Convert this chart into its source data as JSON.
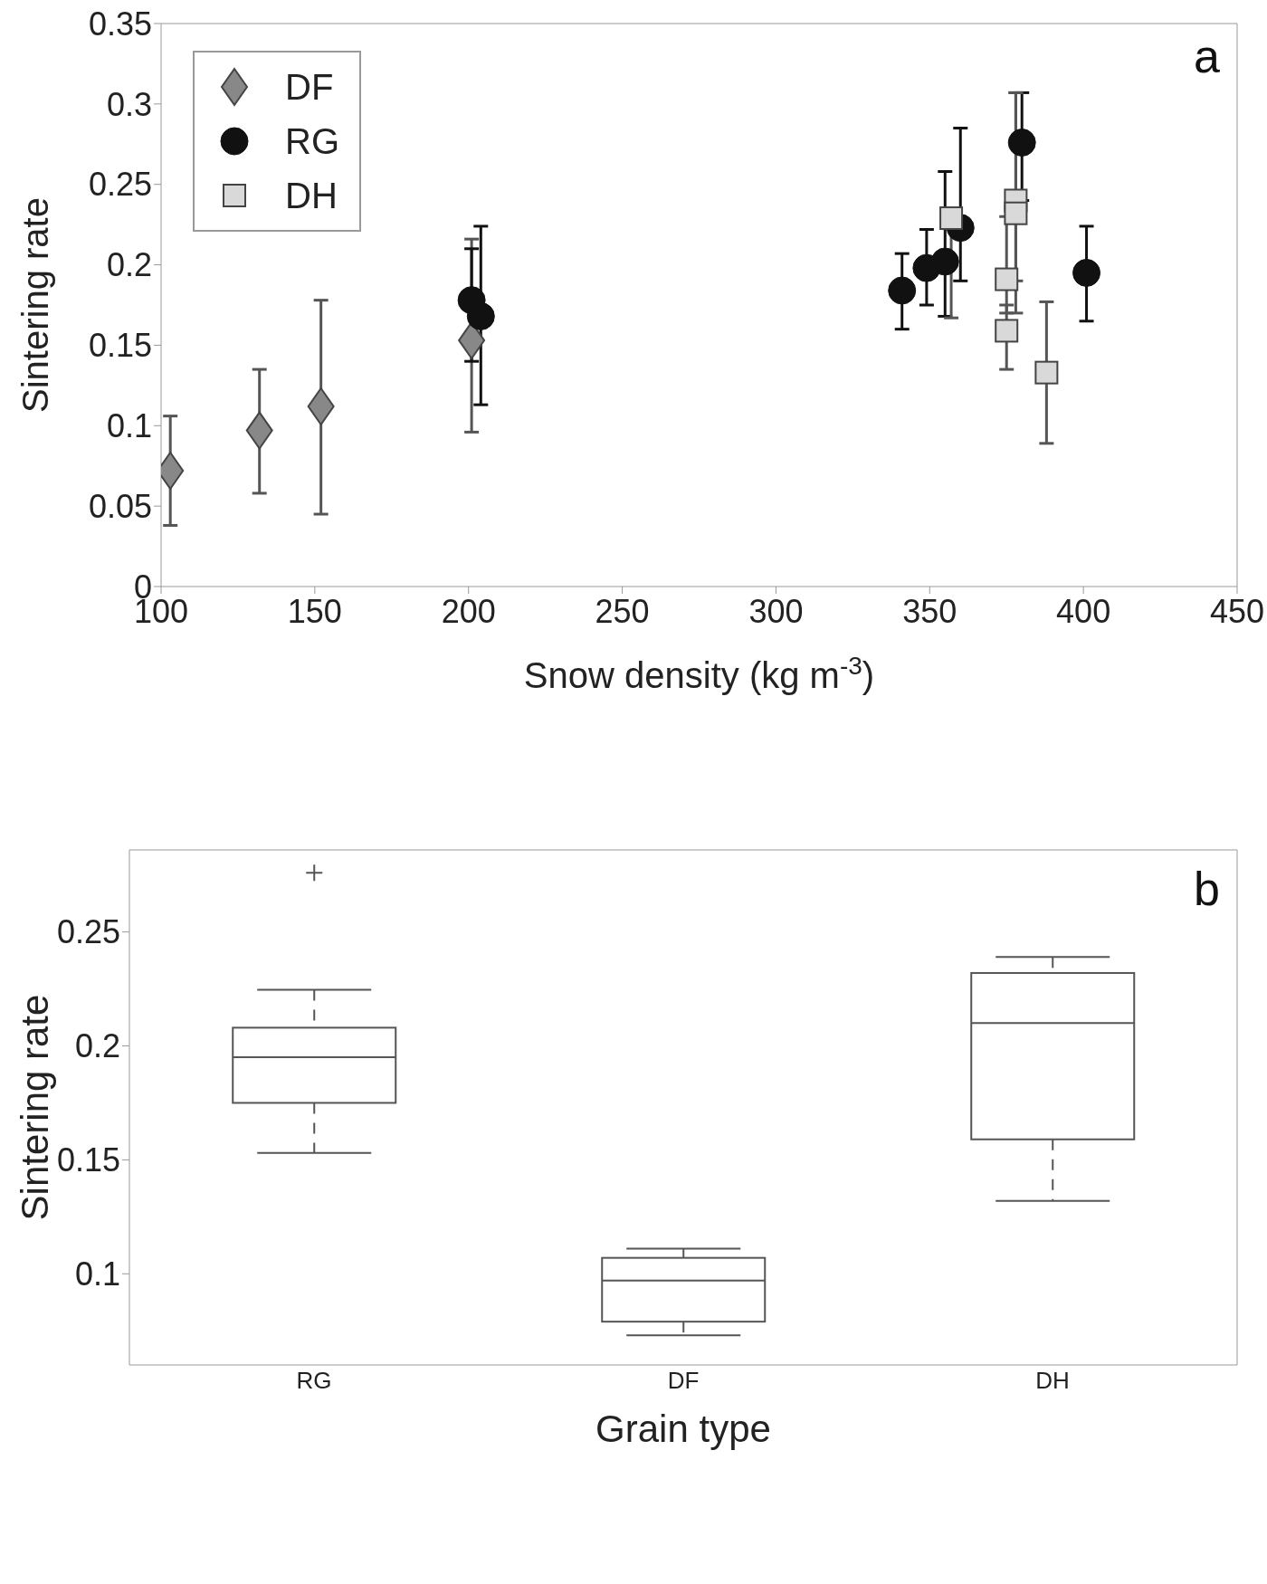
{
  "chart_data": [
    {
      "type": "scatter",
      "xlabel": "Snow density (kg m$^{-3}$)",
      "ylabel": "Sintering rate",
      "annotations": [
        "a"
      ],
      "xlim": [
        100,
        450
      ],
      "xticks": [
        100,
        150,
        200,
        250,
        300,
        350,
        400,
        450
      ],
      "ylim": [
        0,
        0.35
      ],
      "yticks": [
        0,
        0.05,
        0.1,
        0.15,
        0.2,
        0.25,
        0.3,
        0.35
      ],
      "legend": "top left",
      "grid": false,
      "series": [
        {
          "name": "DF",
          "color": "#888888",
          "marker": "diamond",
          "x": [
            103,
            132,
            152,
            201
          ],
          "values": [
            0.072,
            0.097,
            0.112,
            0.153
          ],
          "errors": [
            [
              0.038,
              0.106
            ],
            [
              0.058,
              0.135
            ],
            [
              0.045,
              0.178
            ],
            [
              0.096,
              0.216
            ]
          ]
        },
        {
          "name": "RG",
          "color": "#111111",
          "marker": "circle",
          "x": [
            201,
            204,
            341,
            349,
            355,
            360,
            380,
            401
          ],
          "values": [
            0.178,
            0.168,
            0.184,
            0.198,
            0.202,
            0.223,
            0.276,
            0.195
          ],
          "errors": [
            [
              0.14,
              0.21
            ],
            [
              0.113,
              0.224
            ],
            [
              0.16,
              0.207
            ],
            [
              0.175,
              0.222
            ],
            [
              0.168,
              0.258
            ],
            [
              0.19,
              0.285
            ],
            [
              0.24,
              0.307
            ],
            [
              0.165,
              0.224
            ]
          ]
        },
        {
          "name": "DH",
          "color": "#d9d9d9",
          "marker": "square",
          "x": [
            357,
            378,
            378,
            375,
            375,
            388
          ],
          "values": [
            0.229,
            0.24,
            0.232,
            0.191,
            0.159,
            0.133
          ],
          "errors": [
            [
              0.167,
              0.229
            ],
            [
              0.19,
              0.307
            ],
            [
              0.17,
              0.307
            ],
            [
              0.17,
              0.23
            ],
            [
              0.135,
              0.175
            ],
            [
              0.089,
              0.177
            ]
          ]
        }
      ]
    },
    {
      "type": "box",
      "xlabel": "Grain type",
      "ylabel": "Sintering rate",
      "annotations": [
        "b"
      ],
      "categories": [
        "RG",
        "DF",
        "DH"
      ],
      "ylim": [
        0.06,
        0.286
      ],
      "yticks": [
        0.1,
        0.15,
        0.2,
        0.25
      ],
      "grid": false,
      "boxes": [
        {
          "low": 0.153,
          "q1": 0.175,
          "median": 0.195,
          "q3": 0.208,
          "high": 0.2246,
          "outliers": [
            0.276
          ]
        },
        {
          "low": 0.073,
          "q1": 0.079,
          "median": 0.097,
          "q3": 0.107,
          "high": 0.111
        },
        {
          "low": 0.132,
          "q1": 0.159,
          "median": 0.21,
          "q3": 0.232,
          "high": 0.239
        }
      ]
    }
  ]
}
